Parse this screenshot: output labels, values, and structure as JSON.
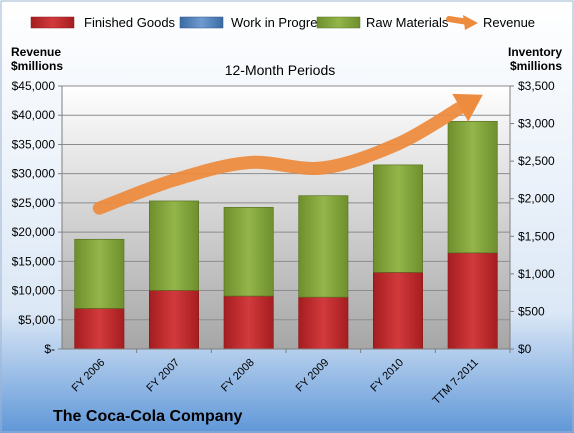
{
  "chart_data": {
    "type": "bar",
    "title": "12-Month Periods",
    "company": "The Coca-Cola Company",
    "categories": [
      "FY 2006",
      "FY 2007",
      "FY 2008",
      "FY 2009",
      "FY 2010",
      "TTM 7-2011"
    ],
    "left_axis": {
      "label_line1": "Revenue",
      "label_line2": "$millions",
      "ylim": [
        0,
        45000
      ],
      "ticks": [
        0,
        5000,
        10000,
        15000,
        20000,
        25000,
        30000,
        35000,
        40000,
        45000
      ],
      "tick_labels": [
        "$-",
        "$5,000",
        "$10,000",
        "$15,000",
        "$20,000",
        "$25,000",
        "$30,000",
        "$35,000",
        "$40,000",
        "$45,000"
      ]
    },
    "right_axis": {
      "label_line1": "Inventory",
      "label_line2": "$millions",
      "ylim": [
        0,
        3500
      ],
      "ticks": [
        0,
        500,
        1000,
        1500,
        2000,
        2500,
        3000,
        3500
      ],
      "tick_labels": [
        "$0",
        "$500",
        "$1,000",
        "$1,500",
        "$2,000",
        "$2,500",
        "$3,000",
        "$3,500"
      ]
    },
    "legend_position": "top",
    "grid": true,
    "series": [
      {
        "name": "Finished Goods",
        "axis": "right",
        "kind": "stacked-bar",
        "color": "#c0282b",
        "values": [
          540,
          780,
          705,
          690,
          1020,
          1280
        ]
      },
      {
        "name": "Work in Progress",
        "axis": "right",
        "kind": "stacked-bar",
        "color": "#4f81bd",
        "values": [
          0,
          0,
          0,
          0,
          0,
          0
        ]
      },
      {
        "name": "Raw Materials",
        "axis": "right",
        "kind": "stacked-bar",
        "color": "#86a83f",
        "values": [
          920,
          1190,
          1180,
          1350,
          1430,
          1750
        ]
      },
      {
        "name": "Revenue",
        "axis": "left",
        "kind": "arrow-line",
        "color": "#ed8b3f",
        "values": [
          24100,
          28900,
          31900,
          30990,
          35100,
          42500
        ]
      }
    ]
  }
}
